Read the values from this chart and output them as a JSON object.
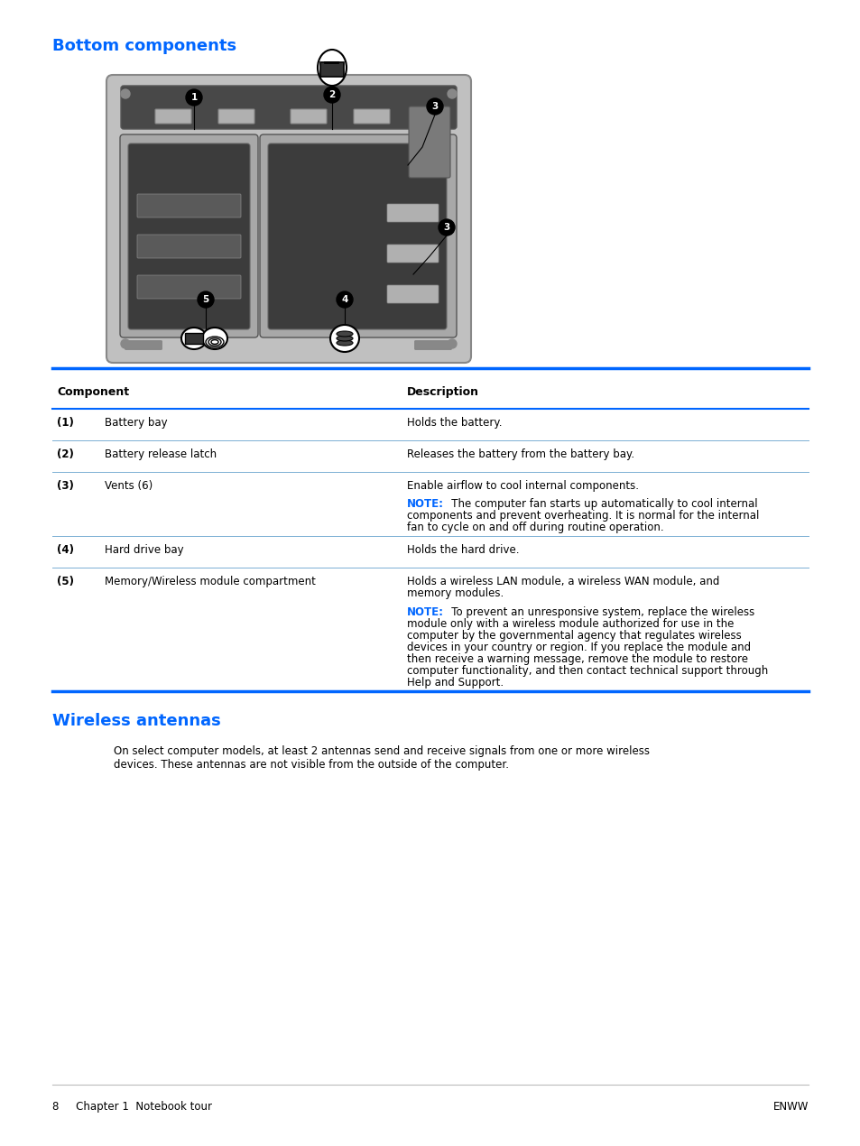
{
  "title1": "Bottom components",
  "title2": "Wireless antennas",
  "title_color": "#0066FF",
  "title_fontsize": 13,
  "bg_color": "#FFFFFF",
  "table_header": [
    "Component",
    "Description"
  ],
  "desc1": "Holds the battery.",
  "desc2": "Releases the battery from the battery bay.",
  "desc3a": "Enable airflow to cool internal components.",
  "desc3_note_label": "NOTE:",
  "desc3_note_line1": "   The computer fan starts up automatically to cool internal",
  "desc3_note_line2": "components and prevent overheating. It is normal for the internal",
  "desc3_note_line3": "fan to cycle on and off during routine operation.",
  "desc4": "Holds the hard drive.",
  "desc5a_line1": "Holds a wireless LAN module, a wireless WAN module, and",
  "desc5a_line2": "memory modules.",
  "desc5_note_label": "NOTE:",
  "desc5_note_line1": "   To prevent an unresponsive system, replace the wireless",
  "desc5_note_line2": "module only with a wireless module authorized for use in the",
  "desc5_note_line3": "computer by the governmental agency that regulates wireless",
  "desc5_note_line4": "devices in your country or region. If you replace the module and",
  "desc5_note_line5": "then receive a warning message, remove the module to restore",
  "desc5_note_line6": "computer functionality, and then contact technical support through",
  "desc5_note_line7": "Help and Support.",
  "row1_num": "(1)",
  "row1_comp": "Battery bay",
  "row2_num": "(2)",
  "row2_comp": "Battery release latch",
  "row3_num": "(3)",
  "row3_comp": "Vents (6)",
  "row4_num": "(4)",
  "row4_comp": "Hard drive bay",
  "row5_num": "(5)",
  "row5_comp": "Memory/Wireless module compartment",
  "wireless_line1": "On select computer models, at least 2 antennas send and receive signals from one or more wireless",
  "wireless_line2": "devices. These antennas are not visible from the outside of the computer.",
  "footer_left": "8     Chapter 1  Notebook tour",
  "footer_right": "ENWW",
  "note_color": "#0066FF",
  "line_color": "#0066FF",
  "table_line_color": "#7BAFD4",
  "body_fontsize": 8.5,
  "header_fontsize": 9,
  "badge_color": "#000000",
  "badge_text_color": "#FFFFFF",
  "laptop_body_color": "#C0C0C0",
  "laptop_dark_color": "#484848",
  "laptop_edge_color": "#888888"
}
